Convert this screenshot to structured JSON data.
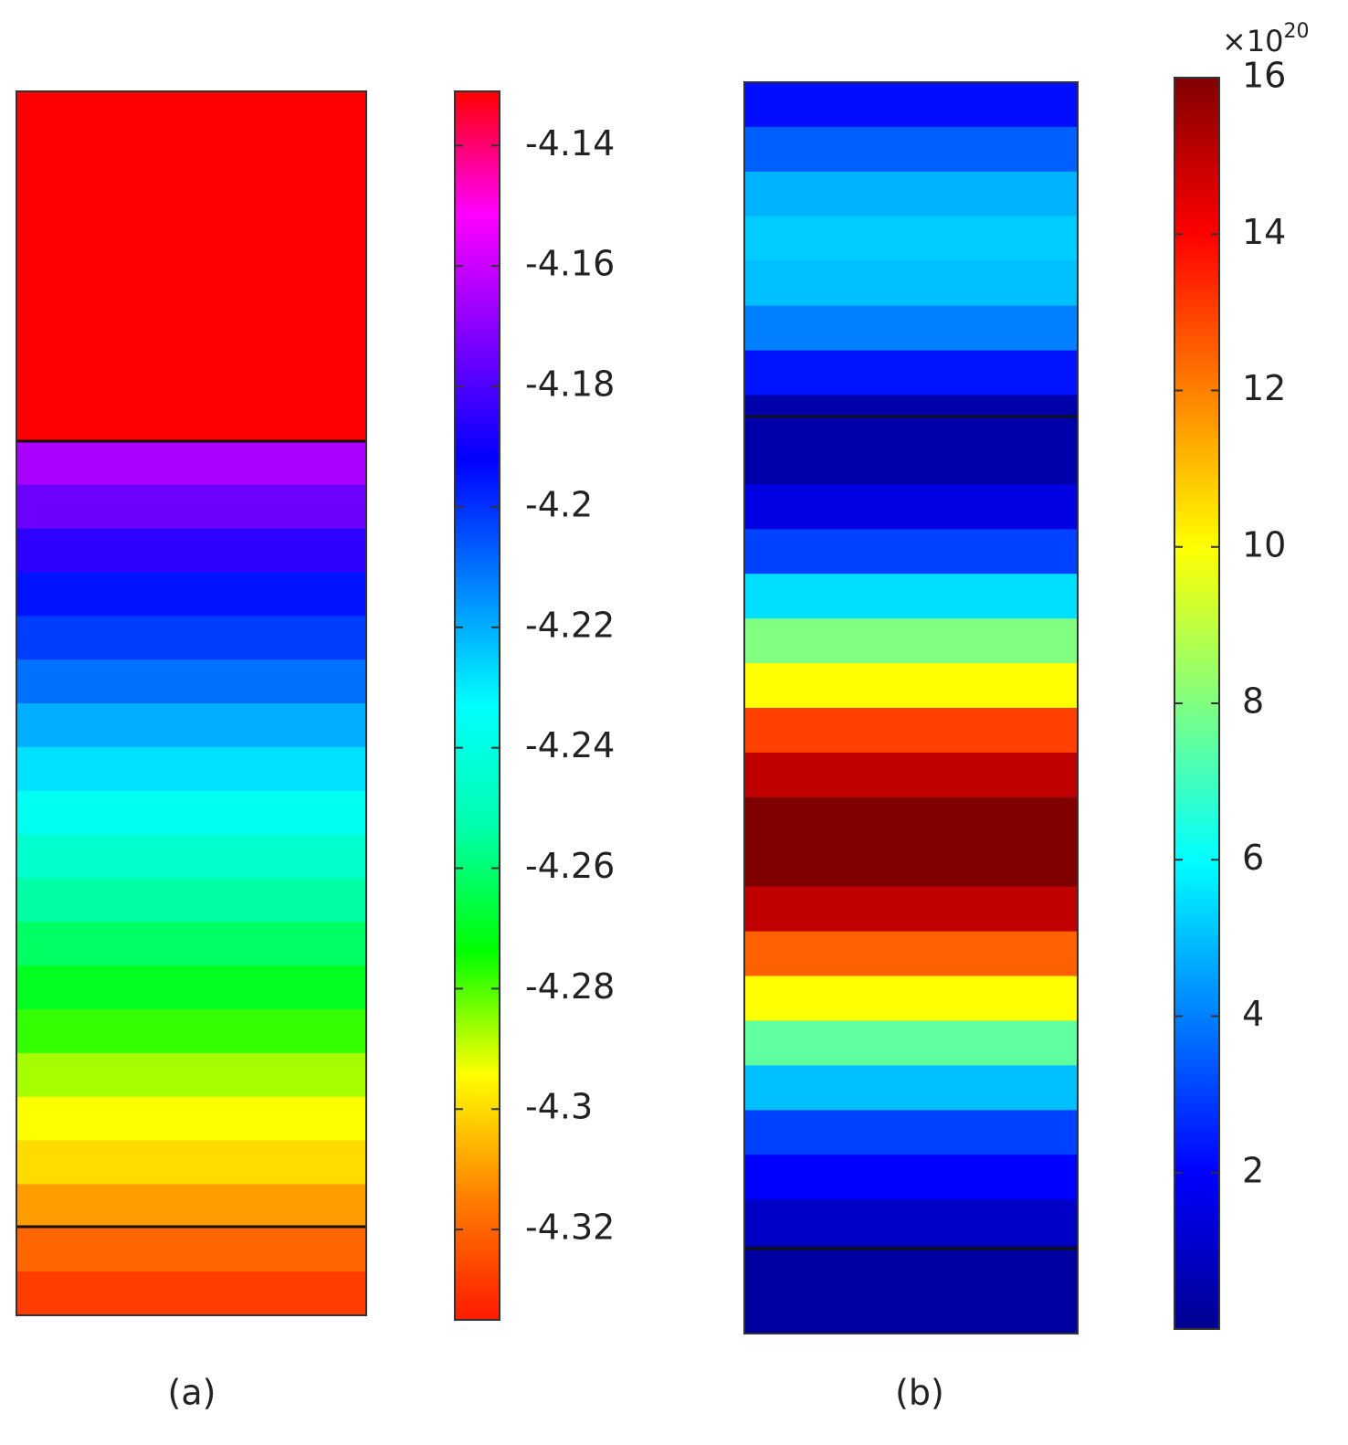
{
  "chart_data": [
    {
      "type": "colormap",
      "label": "(a)",
      "values": [
        -4.131,
        -4.131,
        -4.131,
        -4.131,
        -4.131,
        -4.131,
        -4.131,
        -4.131,
        -4.165,
        -4.175,
        -4.185,
        -4.195,
        -4.202,
        -4.21,
        -4.22,
        -4.228,
        -4.236,
        -4.245,
        -4.254,
        -4.262,
        -4.27,
        -4.278,
        -4.287,
        -4.294,
        -4.3,
        -4.31,
        -4.32,
        -4.328
      ],
      "ylim": [
        -4.335,
        -4.131
      ],
      "yticks": [
        -4.32,
        -4.3,
        -4.28,
        -4.26,
        -4.24,
        -4.22,
        -4.2,
        -4.18,
        -4.16,
        -4.14
      ],
      "colormap": [
        "#ff1a00",
        "#ff8000",
        "#ffff00",
        "#00ff00",
        "#00ffaa",
        "#00ffff",
        "#0080ff",
        "#0000ff",
        "#8000ff",
        "#ff00ff",
        "#ff0000"
      ]
    },
    {
      "type": "colormap",
      "label": "(b)",
      "values": [
        2.2,
        3.5,
        4.8,
        5.2,
        5,
        4,
        2.3,
        0.5,
        0.5,
        1.5,
        3,
        5.5,
        8,
        10,
        13,
        15,
        16,
        16,
        15,
        12.5,
        10,
        7.5,
        5,
        3,
        2,
        1,
        0.3,
        0.3
      ],
      "ylim": [
        0,
        16
      ],
      "yticks": [
        2,
        4,
        6,
        8,
        10,
        12,
        14,
        16
      ],
      "multiplier": {
        "base": "×10",
        "exponent": "20"
      },
      "colormap": [
        "#00008f",
        "#0000ff",
        "#0080ff",
        "#00ffff",
        "#80ff80",
        "#ffff00",
        "#ff8000",
        "#ff0000",
        "#800000"
      ]
    }
  ]
}
